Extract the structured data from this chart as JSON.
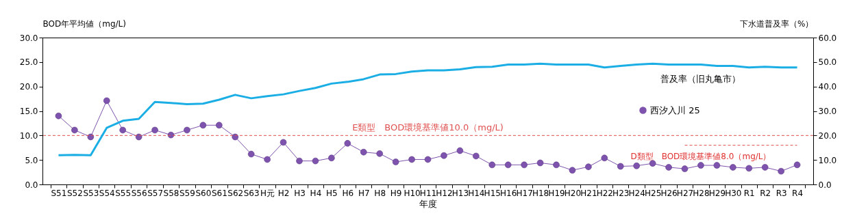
{
  "chart_data": {
    "type": "line",
    "xlabel": "年度",
    "ylabel": "BOD年平均値（mg/L)",
    "y2label": "下水道普及率（%）",
    "categories": [
      "S51",
      "S52",
      "S53",
      "S54",
      "S55",
      "S56",
      "S57",
      "S58",
      "S59",
      "S60",
      "S61",
      "S62",
      "S63",
      "H元",
      "H2",
      "H3",
      "H4",
      "H5",
      "H6",
      "H7",
      "H8",
      "H9",
      "H10",
      "H11",
      "H12",
      "H13",
      "H14",
      "H15",
      "H16",
      "H17",
      "H18",
      "H19",
      "H20",
      "H21",
      "H22",
      "H23",
      "H24",
      "H25",
      "H26",
      "H27",
      "H28",
      "H29",
      "H30",
      "R1",
      "R2",
      "R3",
      "R4"
    ],
    "ylim": [
      0,
      30
    ],
    "yticks": [
      {
        "value": 0,
        "label": "0.0"
      },
      {
        "value": 5,
        "label": "5.0"
      },
      {
        "value": 10,
        "label": "10.0"
      },
      {
        "value": 15,
        "label": "15.0"
      },
      {
        "value": 20,
        "label": "20.0"
      },
      {
        "value": 25,
        "label": "25.0"
      },
      {
        "value": 30,
        "label": "30.0"
      }
    ],
    "y2lim": [
      0,
      60
    ],
    "y2ticks": [
      {
        "value": 0,
        "label": "0.0"
      },
      {
        "value": 10,
        "label": "10.0"
      },
      {
        "value": 20,
        "label": "20.0"
      },
      {
        "value": 30,
        "label": "30.0"
      },
      {
        "value": 40,
        "label": "40.0"
      },
      {
        "value": 50,
        "label": "50.0"
      },
      {
        "value": 60,
        "label": "60.0"
      }
    ],
    "series": [
      {
        "name": "西汐入川 25",
        "type": "line",
        "color": "#7e53ad",
        "marker": "circle",
        "values": [
          14.0,
          11.1,
          9.7,
          17.1,
          11.1,
          9.7,
          11.1,
          10.1,
          11.1,
          12.1,
          12.1,
          9.7,
          6.2,
          5.1,
          8.6,
          4.8,
          4.8,
          5.4,
          8.4,
          6.6,
          6.3,
          4.6,
          5.1,
          5.1,
          5.9,
          6.9,
          5.8,
          4.0,
          4.0,
          4.0,
          4.4,
          4.0,
          2.9,
          3.6,
          5.4,
          3.7,
          3.8,
          4.3,
          3.5,
          3.2,
          3.9,
          3.9,
          3.5,
          3.3,
          3.5,
          2.7,
          4.0
        ]
      },
      {
        "name": "普及率（旧丸亀市）",
        "type": "line",
        "axis": "y2",
        "color": "#1aaee5",
        "marker": "none",
        "values": [
          11.9,
          12.1,
          11.9,
          23.1,
          26.0,
          26.8,
          33.7,
          33.3,
          32.8,
          33.0,
          34.6,
          36.6,
          35.2,
          36.1,
          36.8,
          38.2,
          39.4,
          41.2,
          41.9,
          43.0,
          44.9,
          45.1,
          46.1,
          46.6,
          46.6,
          47.0,
          47.9,
          48.1,
          49.0,
          49.0,
          49.3,
          49.0,
          49.0,
          49.0,
          47.8,
          48.4,
          49.0,
          49.3,
          49.0,
          49.0,
          49.0,
          48.4,
          48.4,
          47.8,
          48.1,
          47.8,
          47.8
        ]
      },
      {
        "type": "line",
        "color": "#e05050",
        "line_style": "dashed",
        "marker": "none",
        "values": [
          null,
          null,
          null,
          null,
          null,
          null,
          null,
          null,
          null,
          null,
          null,
          null,
          null,
          null,
          null,
          null,
          null,
          null,
          null,
          null,
          null,
          null,
          null,
          null,
          null,
          null,
          null,
          null,
          null,
          null,
          null,
          null,
          null,
          null,
          null,
          null,
          null,
          null,
          null,
          8,
          8,
          8,
          8,
          8,
          8,
          8,
          8
        ]
      }
    ],
    "ref_lines": [
      {
        "axis": "y",
        "value": 10,
        "label": "E類型　BOD環境基準値10.0（mg/L)",
        "color": "#e05050",
        "line_style": "dashed"
      }
    ],
    "annotations": [
      {
        "text": "D類型　BOD環境基準値8.0（mg/L）",
        "x": "H28",
        "y": 8
      }
    ],
    "legend": "right",
    "grid": false
  }
}
